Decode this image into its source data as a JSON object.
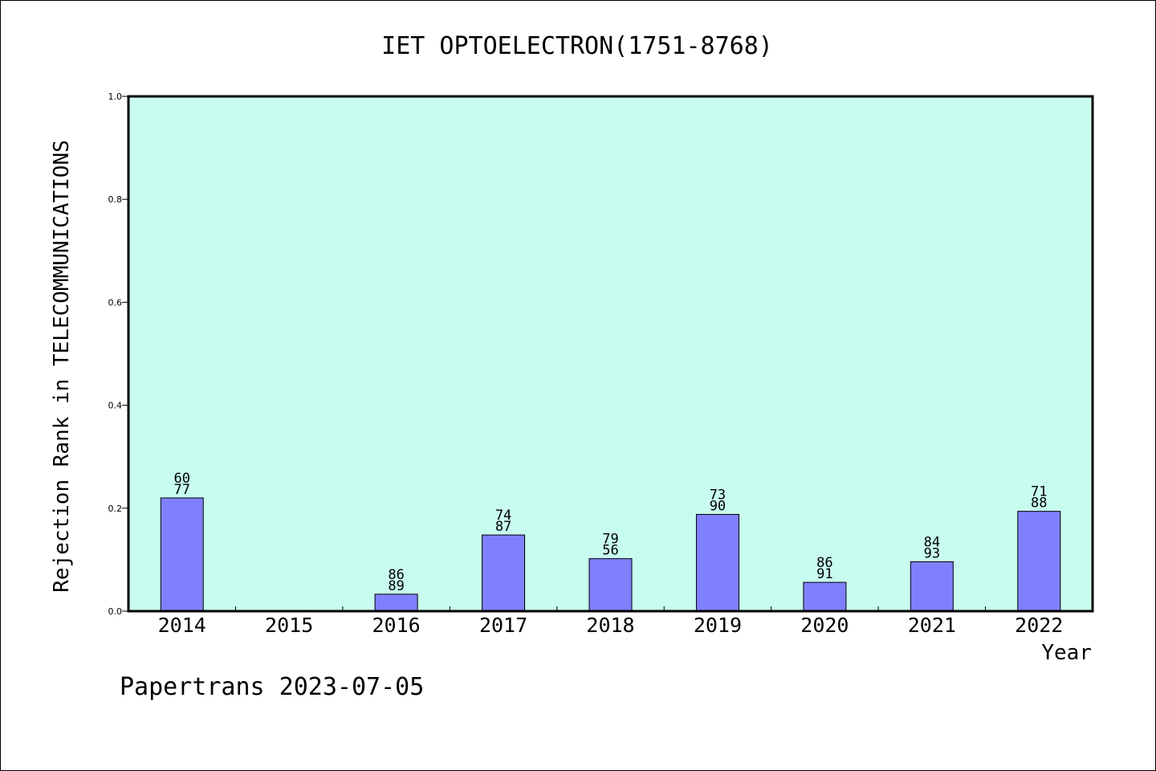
{
  "chart_data": {
    "type": "bar",
    "title": "IET OPTOELECTRON(1751-8768)",
    "xlabel": "Year",
    "ylabel": "Rejection Rank in TELECOMMUNICATIONS",
    "ylim": [
      0,
      1.0
    ],
    "yticks": [
      "0.0",
      "0.2",
      "0.4",
      "0.6",
      "0.8",
      "1.0"
    ],
    "categories": [
      "2014",
      "2015",
      "2016",
      "2017",
      "2018",
      "2019",
      "2020",
      "2021",
      "2022"
    ],
    "values": [
      0.22,
      null,
      0.033,
      0.148,
      0.102,
      0.188,
      0.056,
      0.096,
      0.194
    ],
    "labels": [
      [
        "60",
        "77"
      ],
      null,
      [
        "86",
        "89"
      ],
      [
        "74",
        "87"
      ],
      [
        "79",
        "56"
      ],
      [
        "73",
        "90"
      ],
      [
        "86",
        "91"
      ],
      [
        "84",
        "93"
      ],
      [
        "71",
        "88"
      ]
    ],
    "grid": false,
    "colors": {
      "plot_background": "#c8fcee",
      "bar_fill": "#8080ff",
      "bar_stroke": "#000000",
      "axis": "#000000"
    }
  },
  "footer": {
    "text": "Papertrans 2023-07-05"
  }
}
